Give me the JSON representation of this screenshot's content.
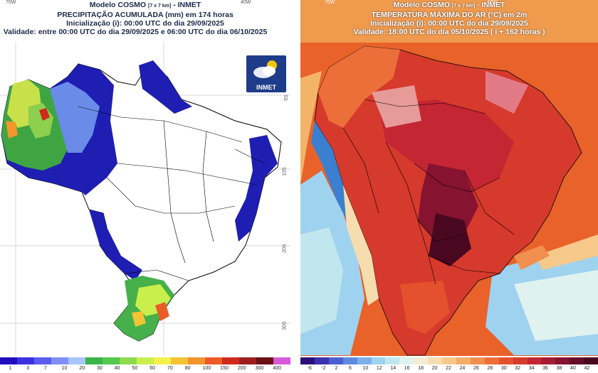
{
  "left": {
    "title": "Modelo COSMO",
    "title_small": "[7 x 7 km]",
    "title_org": "- INMET",
    "line2": "PRECIPITAÇÃO ACUMULADA (mm) em 174 horas",
    "line3": "Inicialização (i): 00:00 UTC do dia 29/09/2025",
    "line4": "Validade: entre 00:00 UTC do dia 29/09/2025 e 06:00 UTC do dia 06/10/2025",
    "lon_labels": [
      "70W",
      "40W"
    ],
    "lat_labels": [
      "5S",
      "10S",
      "20S",
      "30S"
    ],
    "logo_text": "INMET",
    "legend_ticks": [
      "1",
      "3",
      "7",
      "10",
      "20",
      "30",
      "40",
      "50",
      "60",
      "70",
      "80",
      "100",
      "150",
      "200",
      "300",
      "400"
    ],
    "legend_colors": [
      "#1f0fbf",
      "#3b31e0",
      "#5b5cf0",
      "#7f8ff7",
      "#a7c5ff",
      "#39b54a",
      "#55c84f",
      "#8fda4f",
      "#c9ef4d",
      "#f5f14c",
      "#f4c336",
      "#f1952c",
      "#ea5c25",
      "#cf2b1c",
      "#9e1c1c",
      "#6a0f15",
      "#d75bd6"
    ]
  },
  "right": {
    "title": "Modelo COSMO",
    "title_small": "[7 x 7 km]",
    "title_org": "- INMET",
    "line2": "TEMPERATURA MÁXIMA DO AR (°C) em 2m",
    "line3": "Inicialização (i): 00:00 UTC do dia 29/09/2025",
    "line4": "Validade: 18:00 UTC do dia 05/10/2025 ( i + 162 horas )",
    "lon_labels": [
      "70W",
      "40W"
    ],
    "legend_ticks": [
      "-6",
      "-2",
      "2",
      "6",
      "10",
      "12",
      "14",
      "16",
      "18",
      "20",
      "22",
      "24",
      "26",
      "28",
      "30",
      "32",
      "34",
      "36",
      "38",
      "40",
      "42"
    ],
    "legend_colors": [
      "#2a0f7a",
      "#3a2fb0",
      "#4a5fd0",
      "#5f88df",
      "#7cb0ea",
      "#9fd2ef",
      "#c1e7ee",
      "#dff2ef",
      "#f5ecd5",
      "#f6ddb0",
      "#f6c98a",
      "#f4ad6a",
      "#f1904e",
      "#ec6f3a",
      "#e4512c",
      "#d63a2c",
      "#c42634",
      "#a71a33",
      "#861330",
      "#640c28",
      "#4a0820"
    ]
  }
}
